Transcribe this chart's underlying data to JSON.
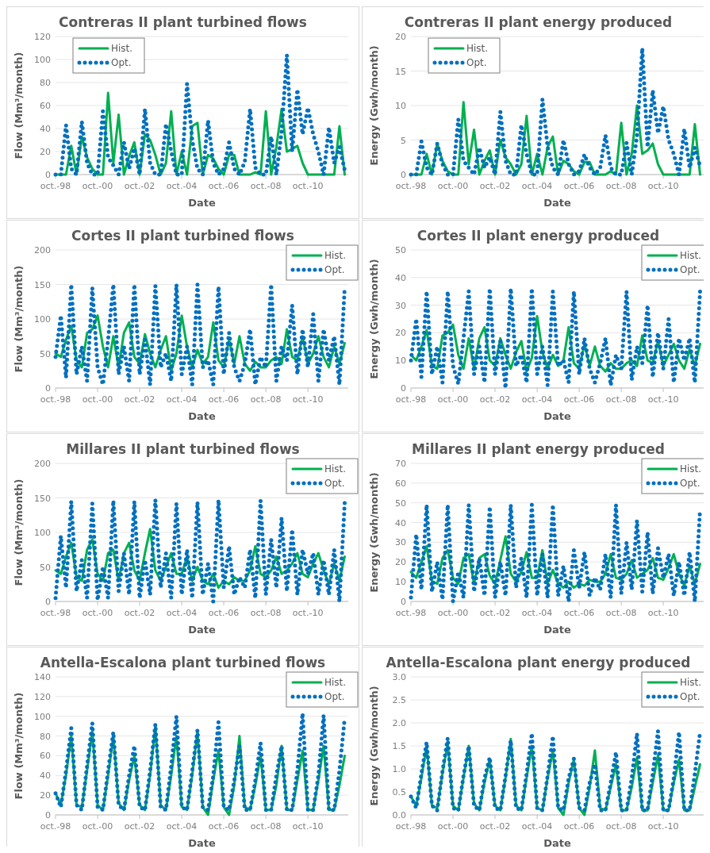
{
  "chart_data": [
    {
      "type": "line",
      "title": "Contreras II plant turbined flows",
      "xlabel": "Date",
      "ylabel": "Flow (Mm³/month)",
      "legend": "top left",
      "grid": "y",
      "ylim": [
        0,
        120
      ],
      "yticks": [
        0,
        20,
        40,
        60,
        80,
        100,
        120
      ],
      "xlim": [
        "1998-10",
        "2012-09"
      ],
      "xticks": [
        {
          "value": "1998-10",
          "label": "oct.-98"
        },
        {
          "value": "2000-10",
          "label": "oct.-00"
        },
        {
          "value": "2002-10",
          "label": "oct.-02"
        },
        {
          "value": "2004-10",
          "label": "oct.-04"
        },
        {
          "value": "2006-10",
          "label": "oct.-06"
        },
        {
          "value": "2008-10",
          "label": "oct.-08"
        },
        {
          "value": "2010-10",
          "label": "oct.-10"
        }
      ],
      "x": [
        "1998-10",
        "1999-01",
        "1999-04",
        "1999-07",
        "1999-10",
        "2000-01",
        "2000-04",
        "2000-07",
        "2000-10",
        "2001-01",
        "2001-04",
        "2001-07",
        "2001-10",
        "2002-01",
        "2002-04",
        "2002-07",
        "2002-10",
        "2003-01",
        "2003-04",
        "2003-07",
        "2003-10",
        "2004-01",
        "2004-04",
        "2004-07",
        "2004-10",
        "2005-01",
        "2005-04",
        "2005-07",
        "2005-10",
        "2006-01",
        "2006-04",
        "2006-07",
        "2006-10",
        "2007-01",
        "2007-04",
        "2007-07",
        "2007-10",
        "2008-01",
        "2008-04",
        "2008-07",
        "2008-10",
        "2009-01",
        "2009-04",
        "2009-07",
        "2009-10",
        "2010-01",
        "2010-04",
        "2010-07",
        "2010-10",
        "2011-01",
        "2011-04",
        "2011-07",
        "2011-10",
        "2012-01",
        "2012-04",
        "2012-07"
      ],
      "series": [
        {
          "name": "Hist.",
          "color": "#00b050",
          "line_style": "solid",
          "values": [
            0,
            0,
            0,
            25,
            0,
            33,
            15,
            5,
            0,
            0,
            71,
            10,
            52,
            0,
            16,
            28,
            0,
            35,
            30,
            17,
            0,
            10,
            55,
            0,
            20,
            0,
            42,
            45,
            0,
            17,
            14,
            5,
            0,
            17,
            17,
            0,
            0,
            0,
            2,
            0,
            55,
            0,
            24,
            57,
            20,
            22,
            25,
            10,
            0,
            0,
            0,
            0,
            0,
            0,
            42,
            0
          ]
        },
        {
          "name": "Opt.",
          "color": "#0070c0",
          "line_style": "dotted",
          "values": [
            0,
            0,
            43,
            5,
            0,
            46,
            10,
            0,
            0,
            55,
            15,
            8,
            0,
            28,
            5,
            23,
            0,
            57,
            10,
            0,
            0,
            44,
            20,
            0,
            0,
            79,
            30,
            5,
            0,
            47,
            10,
            0,
            5,
            28,
            5,
            0,
            11,
            57,
            6,
            0,
            0,
            33,
            0,
            37,
            104,
            20,
            74,
            35,
            58,
            35,
            20,
            0,
            41,
            10,
            24,
            4
          ]
        }
      ]
    },
    {
      "type": "line",
      "title": "Contreras II plant energy produced",
      "xlabel": "Date",
      "ylabel": "Energy (Gwh/month)",
      "legend": "top left",
      "grid": "y",
      "ylim": [
        0,
        20
      ],
      "yticks": [
        0,
        5,
        10,
        15,
        20
      ],
      "xlim": [
        "1998-10",
        "2012-09"
      ],
      "xticks": [
        {
          "value": "1998-10",
          "label": "oct.-98"
        },
        {
          "value": "2000-10",
          "label": "oct.-00"
        },
        {
          "value": "2002-10",
          "label": "oct.-02"
        },
        {
          "value": "2004-10",
          "label": "oct.-04"
        },
        {
          "value": "2006-10",
          "label": "oct.-06"
        },
        {
          "value": "2008-10",
          "label": "oct.-08"
        },
        {
          "value": "2010-10",
          "label": "oct.-10"
        }
      ],
      "x": [
        "1998-10",
        "1999-01",
        "1999-04",
        "1999-07",
        "1999-10",
        "2000-01",
        "2000-04",
        "2000-07",
        "2000-10",
        "2001-01",
        "2001-04",
        "2001-07",
        "2001-10",
        "2002-01",
        "2002-04",
        "2002-07",
        "2002-10",
        "2003-01",
        "2003-04",
        "2003-07",
        "2003-10",
        "2004-01",
        "2004-04",
        "2004-07",
        "2004-10",
        "2005-01",
        "2005-04",
        "2005-07",
        "2005-10",
        "2006-01",
        "2006-04",
        "2006-07",
        "2006-10",
        "2007-01",
        "2007-04",
        "2007-07",
        "2007-10",
        "2008-01",
        "2008-04",
        "2008-07",
        "2008-10",
        "2009-01",
        "2009-04",
        "2009-07",
        "2009-10",
        "2010-01",
        "2010-04",
        "2010-07",
        "2010-10",
        "2011-01",
        "2011-04",
        "2011-07",
        "2011-10",
        "2012-01",
        "2012-04",
        "2012-07"
      ],
      "series": [
        {
          "name": "Hist.",
          "color": "#00b050",
          "line_style": "solid",
          "values": [
            0,
            0,
            0,
            3,
            0,
            4.5,
            2,
            0.5,
            0,
            0,
            10.5,
            1.5,
            6.5,
            0,
            2,
            3.5,
            0,
            5,
            2.5,
            1.5,
            0,
            1.5,
            8.5,
            0,
            3,
            0,
            4,
            5.5,
            0,
            2,
            1.5,
            0.5,
            0,
            1.8,
            1.8,
            0,
            0,
            0,
            0.5,
            0,
            7.5,
            0,
            3,
            10,
            3,
            3.5,
            4.5,
            1.5,
            0,
            0,
            0,
            0,
            0,
            0,
            7.3,
            0
          ]
        },
        {
          "name": "Opt.",
          "color": "#0070c0",
          "line_style": "dotted",
          "values": [
            0,
            0,
            4.8,
            1,
            0,
            4.5,
            1.5,
            0,
            0,
            8,
            2,
            1,
            0,
            3.9,
            1,
            2.5,
            0,
            9.1,
            2,
            0,
            0,
            7.2,
            3,
            0,
            0,
            10.9,
            4,
            1,
            0,
            5,
            1.5,
            0,
            0.5,
            2.9,
            1,
            0,
            1,
            5.7,
            1,
            0,
            0,
            4.6,
            0,
            5.6,
            18.3,
            4,
            12.2,
            6,
            9.9,
            5,
            3,
            0,
            6.6,
            1,
            3.9,
            1.2
          ]
        }
      ]
    },
    {
      "type": "line",
      "title": "Cortes II plant turbined flows",
      "xlabel": "Date",
      "ylabel": "Flow (Mm³/month)",
      "legend": "top right",
      "grid": "y",
      "ylim": [
        0,
        200
      ],
      "yticks": [
        0,
        50,
        100,
        150,
        200
      ],
      "xlim": [
        "1998-10",
        "2012-09"
      ],
      "xticks": [
        {
          "value": "1998-10",
          "label": "oct.-98"
        },
        {
          "value": "2000-10",
          "label": "oct.-00"
        },
        {
          "value": "2002-10",
          "label": "oct.-02"
        },
        {
          "value": "2004-10",
          "label": "oct.-04"
        },
        {
          "value": "2006-10",
          "label": "oct.-06"
        },
        {
          "value": "2008-10",
          "label": "oct.-08"
        },
        {
          "value": "2010-10",
          "label": "oct.-10"
        }
      ],
      "x": [
        "1998-10",
        "1999-01",
        "1999-04",
        "1999-07",
        "1999-10",
        "2000-01",
        "2000-04",
        "2000-07",
        "2000-10",
        "2001-01",
        "2001-04",
        "2001-07",
        "2001-10",
        "2002-01",
        "2002-04",
        "2002-07",
        "2002-10",
        "2003-01",
        "2003-04",
        "2003-07",
        "2003-10",
        "2004-01",
        "2004-04",
        "2004-07",
        "2004-10",
        "2005-01",
        "2005-04",
        "2005-07",
        "2005-10",
        "2006-01",
        "2006-04",
        "2006-07",
        "2006-10",
        "2007-01",
        "2007-04",
        "2007-07",
        "2007-10",
        "2008-01",
        "2008-04",
        "2008-07",
        "2008-10",
        "2009-01",
        "2009-04",
        "2009-07",
        "2009-10",
        "2010-01",
        "2010-04",
        "2010-07",
        "2010-10",
        "2011-01",
        "2011-04",
        "2011-07",
        "2011-10",
        "2012-01",
        "2012-04",
        "2012-07"
      ],
      "series": [
        {
          "name": "Hist.",
          "color": "#00b050",
          "line_style": "solid",
          "values": [
            50,
            45,
            70,
            90,
            40,
            30,
            80,
            85,
            105,
            60,
            30,
            75,
            30,
            80,
            95,
            45,
            35,
            78,
            50,
            30,
            55,
            75,
            25,
            50,
            105,
            60,
            30,
            55,
            35,
            45,
            95,
            40,
            30,
            70,
            35,
            75,
            35,
            25,
            38,
            30,
            30,
            40,
            45,
            35,
            85,
            45,
            40,
            75,
            35,
            50,
            75,
            45,
            30,
            60,
            35,
            65
          ]
        },
        {
          "name": "Opt.",
          "color": "#0070c0",
          "line_style": "dotted",
          "values": [
            45,
            105,
            15,
            150,
            20,
            60,
            10,
            145,
            30,
            5,
            70,
            150,
            20,
            60,
            10,
            150,
            20,
            70,
            5,
            148,
            30,
            50,
            10,
            150,
            20,
            60,
            5,
            150,
            30,
            40,
            5,
            147,
            20,
            80,
            30,
            10,
            35,
            85,
            5,
            45,
            30,
            150,
            10,
            60,
            40,
            120,
            20,
            85,
            30,
            107,
            10,
            85,
            40,
            75,
            5,
            145
          ]
        }
      ]
    },
    {
      "type": "line",
      "title": "Cortes II plant energy produced",
      "xlabel": "Date",
      "ylabel": "Energy (Gwh/month)",
      "legend": "top right",
      "grid": "y",
      "ylim": [
        0,
        50
      ],
      "yticks": [
        0,
        10,
        20,
        30,
        40,
        50
      ],
      "xlim": [
        "1998-10",
        "2012-09"
      ],
      "xticks": [
        {
          "value": "1998-10",
          "label": "oct.-98"
        },
        {
          "value": "2000-10",
          "label": "oct.-00"
        },
        {
          "value": "2002-10",
          "label": "oct.-02"
        },
        {
          "value": "2004-10",
          "label": "oct.-04"
        },
        {
          "value": "2006-10",
          "label": "oct.-06"
        },
        {
          "value": "2008-10",
          "label": "oct.-08"
        },
        {
          "value": "2010-10",
          "label": "oct.-10"
        }
      ],
      "x": [
        "1998-10",
        "1999-01",
        "1999-04",
        "1999-07",
        "1999-10",
        "2000-01",
        "2000-04",
        "2000-07",
        "2000-10",
        "2001-01",
        "2001-04",
        "2001-07",
        "2001-10",
        "2002-01",
        "2002-04",
        "2002-07",
        "2002-10",
        "2003-01",
        "2003-04",
        "2003-07",
        "2003-10",
        "2004-01",
        "2004-04",
        "2004-07",
        "2004-10",
        "2005-01",
        "2005-04",
        "2005-07",
        "2005-10",
        "2006-01",
        "2006-04",
        "2006-07",
        "2006-10",
        "2007-01",
        "2007-04",
        "2007-07",
        "2007-10",
        "2008-01",
        "2008-04",
        "2008-07",
        "2008-10",
        "2009-01",
        "2009-04",
        "2009-07",
        "2009-10",
        "2010-01",
        "2010-04",
        "2010-07",
        "2010-10",
        "2011-01",
        "2011-04",
        "2011-07",
        "2011-10",
        "2012-01",
        "2012-04",
        "2012-07"
      ],
      "series": [
        {
          "name": "Hist.",
          "color": "#00b050",
          "line_style": "solid",
          "values": [
            12,
            10,
            15,
            21,
            8,
            7,
            19,
            20,
            23,
            12,
            7,
            18,
            7,
            18,
            22,
            10,
            8,
            18,
            12,
            7,
            13,
            17,
            6,
            11,
            26,
            13,
            7,
            12,
            8,
            10,
            22,
            9,
            7,
            16,
            8,
            15,
            8,
            6,
            9,
            7,
            7,
            9,
            10,
            8,
            19,
            10,
            9,
            17,
            8,
            12,
            16,
            10,
            7,
            14,
            8,
            16
          ]
        },
        {
          "name": "Opt.",
          "color": "#0070c0",
          "line_style": "dotted",
          "values": [
            10,
            25,
            4,
            35,
            5,
            15,
            2,
            35,
            8,
            1.5,
            18,
            35,
            5,
            15,
            2,
            36,
            5,
            17,
            0,
            36,
            8,
            12,
            2,
            36,
            5,
            15,
            1,
            35,
            8,
            10,
            2,
            35,
            5,
            18,
            7,
            2,
            9,
            18,
            1,
            12,
            7,
            35,
            3,
            15,
            9,
            30,
            4,
            20,
            7,
            25,
            2,
            18,
            10,
            18,
            2,
            35
          ]
        }
      ]
    },
    {
      "type": "line",
      "title": "Millares II plant turbined flows",
      "xlabel": "Date",
      "ylabel": "Flow (Mm³/month)",
      "legend": "top right",
      "grid": "y",
      "ylim": [
        0,
        200
      ],
      "yticks": [
        0,
        50,
        100,
        150,
        200
      ],
      "xlim": [
        "1998-10",
        "2012-09"
      ],
      "xticks": [
        {
          "value": "1998-10",
          "label": "oct.-98"
        },
        {
          "value": "2000-10",
          "label": "oct.-00"
        },
        {
          "value": "2002-10",
          "label": "oct.-02"
        },
        {
          "value": "2004-10",
          "label": "oct.-04"
        },
        {
          "value": "2006-10",
          "label": "oct.-06"
        },
        {
          "value": "2008-10",
          "label": "oct.-08"
        },
        {
          "value": "2010-10",
          "label": "oct.-10"
        }
      ],
      "x": [
        "1998-10",
        "1999-01",
        "1999-04",
        "1999-07",
        "1999-10",
        "2000-01",
        "2000-04",
        "2000-07",
        "2000-10",
        "2001-01",
        "2001-04",
        "2001-07",
        "2001-10",
        "2002-01",
        "2002-04",
        "2002-07",
        "2002-10",
        "2003-01",
        "2003-04",
        "2003-07",
        "2003-10",
        "2004-01",
        "2004-04",
        "2004-07",
        "2004-10",
        "2005-01",
        "2005-04",
        "2005-07",
        "2005-10",
        "2006-01",
        "2006-04",
        "2006-07",
        "2006-10",
        "2007-01",
        "2007-04",
        "2007-07",
        "2007-10",
        "2008-01",
        "2008-04",
        "2008-07",
        "2008-10",
        "2009-01",
        "2009-04",
        "2009-07",
        "2009-10",
        "2010-01",
        "2010-04",
        "2010-07",
        "2010-10",
        "2011-01",
        "2011-04",
        "2011-07",
        "2011-10",
        "2012-01",
        "2012-04",
        "2012-07"
      ],
      "series": [
        {
          "name": "Hist.",
          "color": "#00b050",
          "line_style": "solid",
          "values": [
            45,
            40,
            65,
            85,
            35,
            30,
            75,
            90,
            40,
            30,
            70,
            75,
            30,
            70,
            85,
            45,
            30,
            70,
            105,
            45,
            30,
            50,
            70,
            40,
            40,
            65,
            30,
            50,
            30,
            25,
            40,
            20,
            30,
            25,
            35,
            30,
            30,
            45,
            80,
            40,
            35,
            45,
            65,
            40,
            45,
            55,
            70,
            40,
            35,
            55,
            70,
            45,
            25,
            55,
            30,
            65
          ]
        },
        {
          "name": "Opt.",
          "color": "#0070c0",
          "line_style": "dotted",
          "values": [
            5,
            95,
            20,
            145,
            15,
            60,
            5,
            142,
            2,
            50,
            5,
            146,
            15,
            70,
            10,
            145,
            5,
            60,
            10,
            147,
            20,
            70,
            5,
            142,
            10,
            75,
            5,
            144,
            10,
            55,
            0,
            147,
            20,
            80,
            10,
            35,
            20,
            75,
            5,
            146,
            10,
            90,
            20,
            121,
            15,
            104,
            10,
            75,
            40,
            70,
            10,
            60,
            10,
            75,
            0,
            143
          ]
        }
      ]
    },
    {
      "type": "line",
      "title": "Millares II plant energy produced",
      "xlabel": "Date",
      "ylabel": "Energy (Gwh/month)",
      "legend": "top right",
      "grid": "y",
      "ylim": [
        0,
        70
      ],
      "yticks": [
        0,
        10,
        20,
        30,
        40,
        50,
        60,
        70
      ],
      "xlim": [
        "1998-10",
        "2012-09"
      ],
      "xticks": [
        {
          "value": "1998-10",
          "label": "oct.-98"
        },
        {
          "value": "2000-10",
          "label": "oct.-00"
        },
        {
          "value": "2002-10",
          "label": "oct.-02"
        },
        {
          "value": "2004-10",
          "label": "oct.-04"
        },
        {
          "value": "2006-10",
          "label": "oct.-06"
        },
        {
          "value": "2008-10",
          "label": "oct.-08"
        },
        {
          "value": "2010-10",
          "label": "oct.-10"
        }
      ],
      "x": [
        "1998-10",
        "1999-01",
        "1999-04",
        "1999-07",
        "1999-10",
        "2000-01",
        "2000-04",
        "2000-07",
        "2000-10",
        "2001-01",
        "2001-04",
        "2001-07",
        "2001-10",
        "2002-01",
        "2002-04",
        "2002-07",
        "2002-10",
        "2003-01",
        "2003-04",
        "2003-07",
        "2003-10",
        "2004-01",
        "2004-04",
        "2004-07",
        "2004-10",
        "2005-01",
        "2005-04",
        "2005-07",
        "2005-10",
        "2006-01",
        "2006-04",
        "2006-07",
        "2006-10",
        "2007-01",
        "2007-04",
        "2007-07",
        "2007-10",
        "2008-01",
        "2008-04",
        "2008-07",
        "2008-10",
        "2009-01",
        "2009-04",
        "2009-07",
        "2009-10",
        "2010-01",
        "2010-04",
        "2010-07",
        "2010-10",
        "2011-01",
        "2011-04",
        "2011-07",
        "2011-10",
        "2012-01",
        "2012-04",
        "2012-07"
      ],
      "series": [
        {
          "name": "Hist.",
          "color": "#00b050",
          "line_style": "solid",
          "values": [
            15,
            12,
            20,
            28,
            10,
            9,
            22,
            26,
            12,
            9,
            22,
            24,
            9,
            22,
            24,
            13,
            9,
            21,
            33,
            14,
            10,
            15,
            25,
            12,
            12,
            26,
            9,
            16,
            9,
            7,
            10,
            7,
            9,
            8,
            11,
            10,
            10,
            14,
            24,
            12,
            11,
            14,
            21,
            12,
            14,
            16,
            22,
            12,
            11,
            17,
            24,
            14,
            8,
            18,
            9,
            19
          ]
        },
        {
          "name": "Opt.",
          "color": "#0070c0",
          "line_style": "dotted",
          "values": [
            2,
            34,
            6,
            49,
            5,
            20,
            1,
            49,
            0,
            15,
            2,
            49,
            5,
            22,
            3,
            48,
            2,
            20,
            3,
            49,
            7,
            22,
            2,
            49,
            3,
            24,
            2,
            49,
            3,
            18,
            0,
            26,
            7,
            25,
            3,
            12,
            6,
            24,
            2,
            49,
            4,
            30,
            6,
            41,
            5,
            35,
            4,
            27,
            12,
            24,
            3,
            20,
            3,
            25,
            0,
            47
          ]
        }
      ]
    },
    {
      "type": "line",
      "title": "Antella-Escalona plant turbined flows",
      "xlabel": "Date",
      "ylabel": "Flow (Mm³/month)",
      "legend": "top right",
      "grid": "y",
      "ylim": [
        0,
        140
      ],
      "yticks": [
        0,
        20,
        40,
        60,
        80,
        100,
        120,
        140
      ],
      "xlim": [
        "1998-10",
        "2012-09"
      ],
      "xticks": [
        {
          "value": "1998-10",
          "label": "oct.-98"
        },
        {
          "value": "2000-10",
          "label": "oct.-00"
        },
        {
          "value": "2002-10",
          "label": "oct.-02"
        },
        {
          "value": "2004-10",
          "label": "oct.-04"
        },
        {
          "value": "2006-10",
          "label": "oct.-06"
        },
        {
          "value": "2008-10",
          "label": "oct.-08"
        },
        {
          "value": "2010-10",
          "label": "oct.-10"
        }
      ],
      "x": [
        "1998-10",
        "1999-01",
        "1999-04",
        "1999-07",
        "1999-10",
        "2000-01",
        "2000-04",
        "2000-07",
        "2000-10",
        "2001-01",
        "2001-04",
        "2001-07",
        "2001-10",
        "2002-01",
        "2002-04",
        "2002-07",
        "2002-10",
        "2003-01",
        "2003-04",
        "2003-07",
        "2003-10",
        "2004-01",
        "2004-04",
        "2004-07",
        "2004-10",
        "2005-01",
        "2005-04",
        "2005-07",
        "2005-10",
        "2006-01",
        "2006-04",
        "2006-07",
        "2006-10",
        "2007-01",
        "2007-04",
        "2007-07",
        "2007-10",
        "2008-01",
        "2008-04",
        "2008-07",
        "2008-10",
        "2009-01",
        "2009-04",
        "2009-07",
        "2009-10",
        "2010-01",
        "2010-04",
        "2010-07",
        "2010-10",
        "2011-01",
        "2011-04",
        "2011-07",
        "2011-10",
        "2012-01",
        "2012-04",
        "2012-07"
      ],
      "series": [
        {
          "name": "Hist.",
          "color": "#00b050",
          "line_style": "solid",
          "values": [
            22,
            10,
            40,
            80,
            10,
            8,
            45,
            85,
            10,
            5,
            40,
            80,
            12,
            5,
            35,
            60,
            10,
            5,
            40,
            90,
            10,
            5,
            40,
            80,
            8,
            5,
            40,
            85,
            8,
            0,
            35,
            65,
            8,
            0,
            30,
            80,
            8,
            5,
            30,
            60,
            5,
            5,
            30,
            70,
            5,
            5,
            35,
            65,
            5,
            5,
            35,
            70,
            5,
            5,
            30,
            60
          ]
        },
        {
          "name": "Opt.",
          "color": "#0070c0",
          "line_style": "dotted",
          "values": [
            22,
            8,
            45,
            88,
            10,
            5,
            50,
            93,
            8,
            5,
            45,
            84,
            10,
            5,
            40,
            70,
            8,
            5,
            45,
            92,
            8,
            5,
            50,
            100,
            8,
            5,
            45,
            86,
            8,
            5,
            40,
            94,
            8,
            5,
            35,
            70,
            5,
            5,
            35,
            73,
            5,
            5,
            40,
            70,
            5,
            5,
            45,
            103,
            5,
            5,
            40,
            101,
            5,
            5,
            45,
            98
          ]
        }
      ]
    },
    {
      "type": "line",
      "title": "Antella-Escalona plant energy produced",
      "xlabel": "Date",
      "ylabel": "Energy (Gwh/month)",
      "legend": "top right",
      "grid": "y",
      "ylim": [
        0,
        3
      ],
      "yticks": [
        {
          "value": 0,
          "label": "0.0"
        },
        0.5,
        {
          "value": 1,
          "label": "1.0"
        },
        1.5,
        {
          "value": 2,
          "label": "2.0"
        },
        2.5,
        {
          "value": 3,
          "label": "3.0"
        }
      ],
      "xlim": [
        "1998-10",
        "2012-09"
      ],
      "xticks": [
        {
          "value": "1998-10",
          "label": "oct.-98"
        },
        {
          "value": "2000-10",
          "label": "oct.-00"
        },
        {
          "value": "2002-10",
          "label": "oct.-02"
        },
        {
          "value": "2004-10",
          "label": "oct.-04"
        },
        {
          "value": "2006-10",
          "label": "oct.-06"
        },
        {
          "value": "2008-10",
          "label": "oct.-08"
        },
        {
          "value": "2010-10",
          "label": "oct.-10"
        }
      ],
      "x": [
        "1998-10",
        "1999-01",
        "1999-04",
        "1999-07",
        "1999-10",
        "2000-01",
        "2000-04",
        "2000-07",
        "2000-10",
        "2001-01",
        "2001-04",
        "2001-07",
        "2001-10",
        "2002-01",
        "2002-04",
        "2002-07",
        "2002-10",
        "2003-01",
        "2003-04",
        "2003-07",
        "2003-10",
        "2004-01",
        "2004-04",
        "2004-07",
        "2004-10",
        "2005-01",
        "2005-04",
        "2005-07",
        "2005-10",
        "2006-01",
        "2006-04",
        "2006-07",
        "2006-10",
        "2007-01",
        "2007-04",
        "2007-07",
        "2007-10",
        "2008-01",
        "2008-04",
        "2008-07",
        "2008-10",
        "2009-01",
        "2009-04",
        "2009-07",
        "2009-10",
        "2010-01",
        "2010-04",
        "2010-07",
        "2010-10",
        "2011-01",
        "2011-04",
        "2011-07",
        "2011-10",
        "2012-01",
        "2012-04",
        "2012-07"
      ],
      "series": [
        {
          "name": "Hist.",
          "color": "#00b050",
          "line_style": "solid",
          "values": [
            0.4,
            0.2,
            0.8,
            1.5,
            0.2,
            0.15,
            0.9,
            1.55,
            0.2,
            0.1,
            0.8,
            1.5,
            0.25,
            0.1,
            0.7,
            1.2,
            0.2,
            0.1,
            0.8,
            1.65,
            0.2,
            0.1,
            0.8,
            1.5,
            0.15,
            0.1,
            0.8,
            1.4,
            0.15,
            0,
            0.7,
            1.2,
            0.15,
            0,
            0.6,
            1.4,
            0.15,
            0.1,
            0.6,
            1.1,
            0.1,
            0.1,
            0.6,
            1.25,
            0.1,
            0.1,
            0.7,
            1.3,
            0.1,
            0.1,
            0.7,
            1.2,
            0.1,
            0.1,
            0.6,
            1.1
          ]
        },
        {
          "name": "Opt.",
          "color": "#0070c0",
          "line_style": "dotted",
          "values": [
            0.4,
            0.15,
            0.9,
            1.58,
            0.2,
            0.1,
            0.95,
            1.67,
            0.15,
            0.1,
            0.85,
            1.5,
            0.2,
            0.1,
            0.8,
            1.25,
            0.15,
            0.1,
            0.85,
            1.62,
            0.15,
            0.1,
            0.9,
            1.77,
            0.15,
            0.1,
            0.85,
            1.71,
            0.15,
            0.1,
            0.8,
            1.22,
            0.15,
            0.1,
            0.7,
            1.1,
            0.1,
            0.1,
            0.7,
            1.36,
            0.1,
            0.1,
            0.8,
            1.77,
            0.1,
            0.1,
            0.9,
            1.82,
            0.1,
            0.1,
            0.8,
            1.8,
            0.1,
            0.1,
            0.9,
            1.8
          ]
        }
      ]
    }
  ]
}
